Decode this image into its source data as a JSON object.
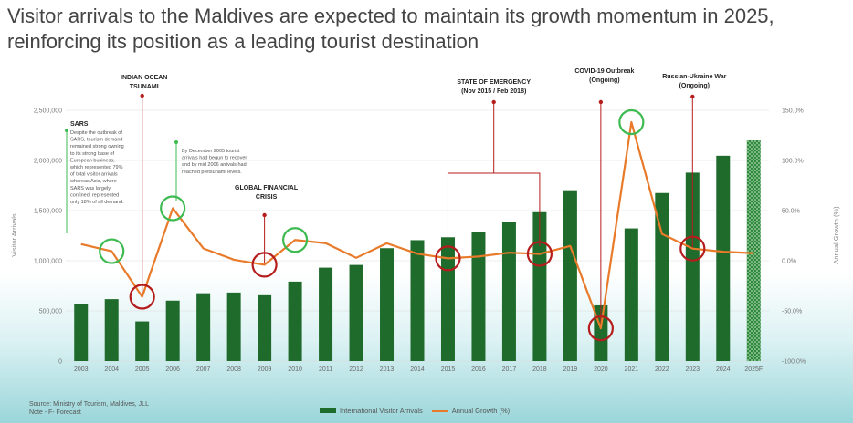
{
  "title": "Visitor arrivals to the Maldives are expected to maintain its growth momentum in 2025, reinforcing its position as a leading tourist destination",
  "source_lines": [
    "Source: Ministry of Tourism, Maldives,  JLL",
    "Note - F- Forecast"
  ],
  "colors": {
    "bar": "#1e6b2c",
    "forecast_bar": "#2f8a3c",
    "line": "#e87a2a",
    "pos_circle": "#3dba50",
    "neg_circle": "#b51d1d",
    "event_line": "#b51d1d"
  },
  "chart_data": {
    "type": "bar",
    "categories": [
      "2003",
      "2004",
      "2005",
      "2006",
      "2007",
      "2008",
      "2009",
      "2010",
      "2011",
      "2012",
      "2013",
      "2014",
      "2015",
      "2016",
      "2017",
      "2018",
      "2019",
      "2020",
      "2021",
      "2022",
      "2023",
      "2024",
      "2025F"
    ],
    "series": [
      {
        "name": "International Visitor Arrivals",
        "type": "bar",
        "axis": "left",
        "values": [
          564000,
          617000,
          395000,
          602000,
          676000,
          683000,
          656000,
          792000,
          931000,
          958000,
          1125000,
          1205000,
          1234000,
          1286000,
          1390000,
          1484000,
          1703000,
          555000,
          1322000,
          1675000,
          1878000,
          2047000,
          2200000
        ]
      },
      {
        "name": "Annual Growth (%)",
        "type": "line",
        "axis": "right",
        "values": [
          16.5,
          9.5,
          -35.9,
          52.3,
          12.3,
          1.0,
          -4.0,
          20.7,
          17.5,
          2.9,
          17.4,
          7.0,
          2.4,
          4.2,
          8.0,
          6.8,
          14.7,
          -67.4,
          138.2,
          26.7,
          12.1,
          9.0,
          7.5
        ]
      }
    ],
    "forecast_category": "2025F",
    "y_left": {
      "label": "Visitor Arrivals",
      "ylim": [
        0,
        2500000
      ],
      "ticks": [
        "0",
        "500,000",
        "1,000,000",
        "1,500,000",
        "2,000,000",
        "2,500,000"
      ]
    },
    "y_right": {
      "label": "Annual Growth (%)",
      "ylim": [
        -100,
        150
      ],
      "ticks": [
        "-100.0%",
        "-50.0%",
        "0.0%",
        "50.0%",
        "100.0%",
        "150.0%"
      ]
    },
    "grid": true,
    "legend_position": "bottom",
    "legend": [
      "International Visitor Arrivals",
      "Annual Growth (%)"
    ],
    "circles": [
      {
        "category": "2004",
        "tone": "positive"
      },
      {
        "category": "2005",
        "tone": "negative"
      },
      {
        "category": "2006",
        "tone": "positive"
      },
      {
        "category": "2009",
        "tone": "negative"
      },
      {
        "category": "2010",
        "tone": "positive"
      },
      {
        "category": "2015",
        "tone": "negative"
      },
      {
        "category": "2018",
        "tone": "negative"
      },
      {
        "category": "2020",
        "tone": "negative"
      },
      {
        "category": "2021",
        "tone": "positive"
      },
      {
        "category": "2023",
        "tone": "negative"
      }
    ],
    "events": [
      {
        "label_lines": [
          "INDIAN OCEAN",
          "TSUNAMI"
        ],
        "category": "2005"
      },
      {
        "label_lines": [
          "GLOBAL FINANCIAL",
          "CRISIS"
        ],
        "category": "2009"
      },
      {
        "label_lines": [
          "STATE OF EMERGENCY",
          "(Nov 2015 / Feb 2018)"
        ],
        "category_span": [
          "2015",
          "2018"
        ]
      },
      {
        "label_lines": [
          "COVID-19 Outbreak",
          "(Ongoing)"
        ],
        "category": "2020"
      },
      {
        "label_lines": [
          "Russian-Ukraine War",
          "(Ongoing)"
        ],
        "category": "2023"
      }
    ],
    "annotations": [
      {
        "heading": "SARS",
        "lines": [
          "Despite the outbreak of",
          "SARS, tourism demand",
          "remained strong owning",
          "to its strong base of",
          "European business,",
          "which represented 79%",
          "of total visitor arrivals",
          "whereas Asia, where",
          "SARS was largely",
          "confined, represented",
          "only 18% of all demand."
        ]
      },
      {
        "heading": "",
        "lines": [
          "By December 2005 tourist",
          "arrivals had begun to recover",
          "and by mid 2006 arrivals had",
          "reached pretsunami levels."
        ]
      }
    ]
  },
  "legend_labels": {
    "bars": "International Visitor Arrivals",
    "line": "Annual Growth (%)"
  }
}
